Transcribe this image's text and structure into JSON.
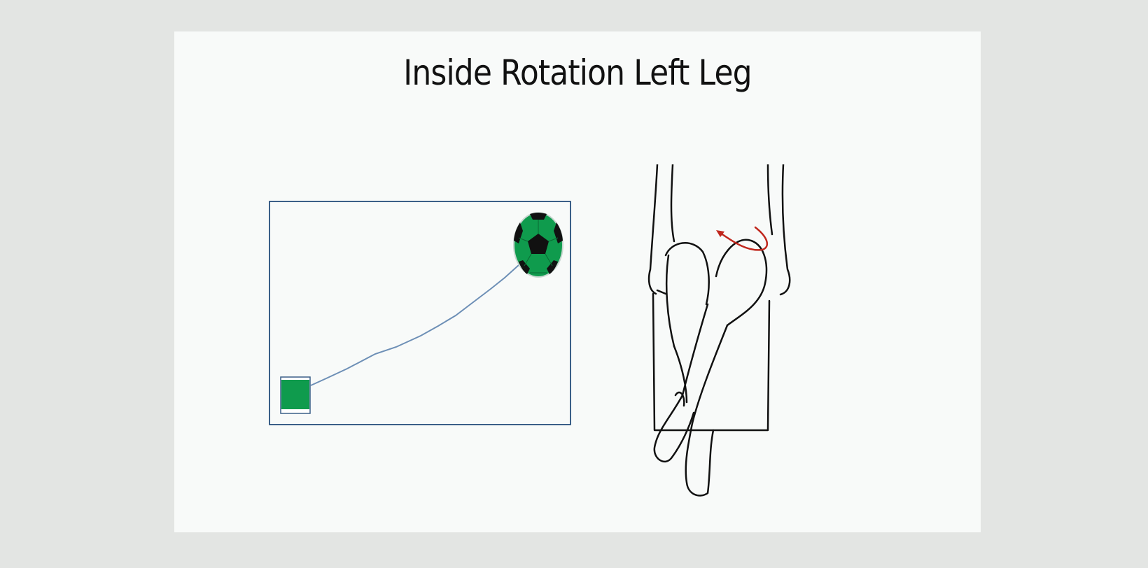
{
  "slide": {
    "title": "Inside Rotation Left Leg"
  },
  "game_panel": {
    "start_marker": "green-square",
    "target_marker": "soccer-ball",
    "colors": {
      "border": "#3b5f88",
      "path": "#6d8fb6",
      "marker_green": "#0f9b4d",
      "ball_black": "#111111"
    }
  },
  "figure": {
    "subject": "seated legs crossed",
    "arrow": "red-rotation-arrow",
    "colors": {
      "arrow": "#c0271d",
      "outline": "#111111"
    }
  }
}
